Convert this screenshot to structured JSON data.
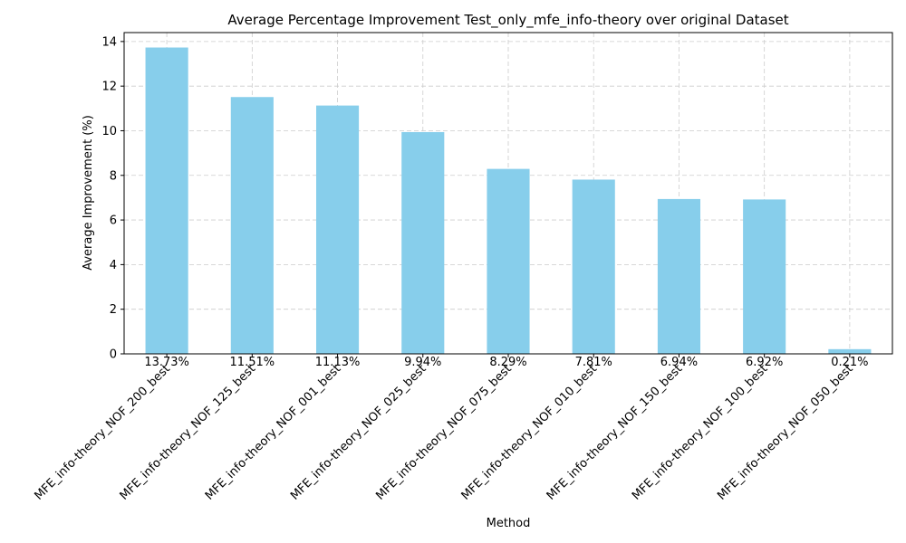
{
  "chart_data": {
    "type": "bar",
    "title": "Average Percentage Improvement Test_only_mfe_info-theory over original Dataset",
    "xlabel": "Method",
    "ylabel": "Average Improvement (%)",
    "ylim": [
      0,
      14.4
    ],
    "yticks": [
      0,
      2,
      4,
      6,
      8,
      10,
      12,
      14
    ],
    "grid": true,
    "bar_color": "#87ceeb",
    "categories": [
      "MFE_info-theory_NOF_200_best",
      "MFE_info-theory_NOF_125_best",
      "MFE_info-theory_NOF_001_best",
      "MFE_info-theory_NOF_025_best",
      "MFE_info-theory_NOF_075_best",
      "MFE_info-theory_NOF_010_best",
      "MFE_info-theory_NOF_150_best",
      "MFE_info-theory_NOF_100_best",
      "MFE_info-theory_NOF_050_best"
    ],
    "values": [
      13.73,
      11.51,
      11.13,
      9.94,
      8.29,
      7.81,
      6.94,
      6.92,
      0.21
    ],
    "value_labels": [
      "13.73%",
      "11.51%",
      "11.13%",
      "9.94%",
      "8.29%",
      "7.81%",
      "6.94%",
      "6.92%",
      "0.21%"
    ]
  }
}
